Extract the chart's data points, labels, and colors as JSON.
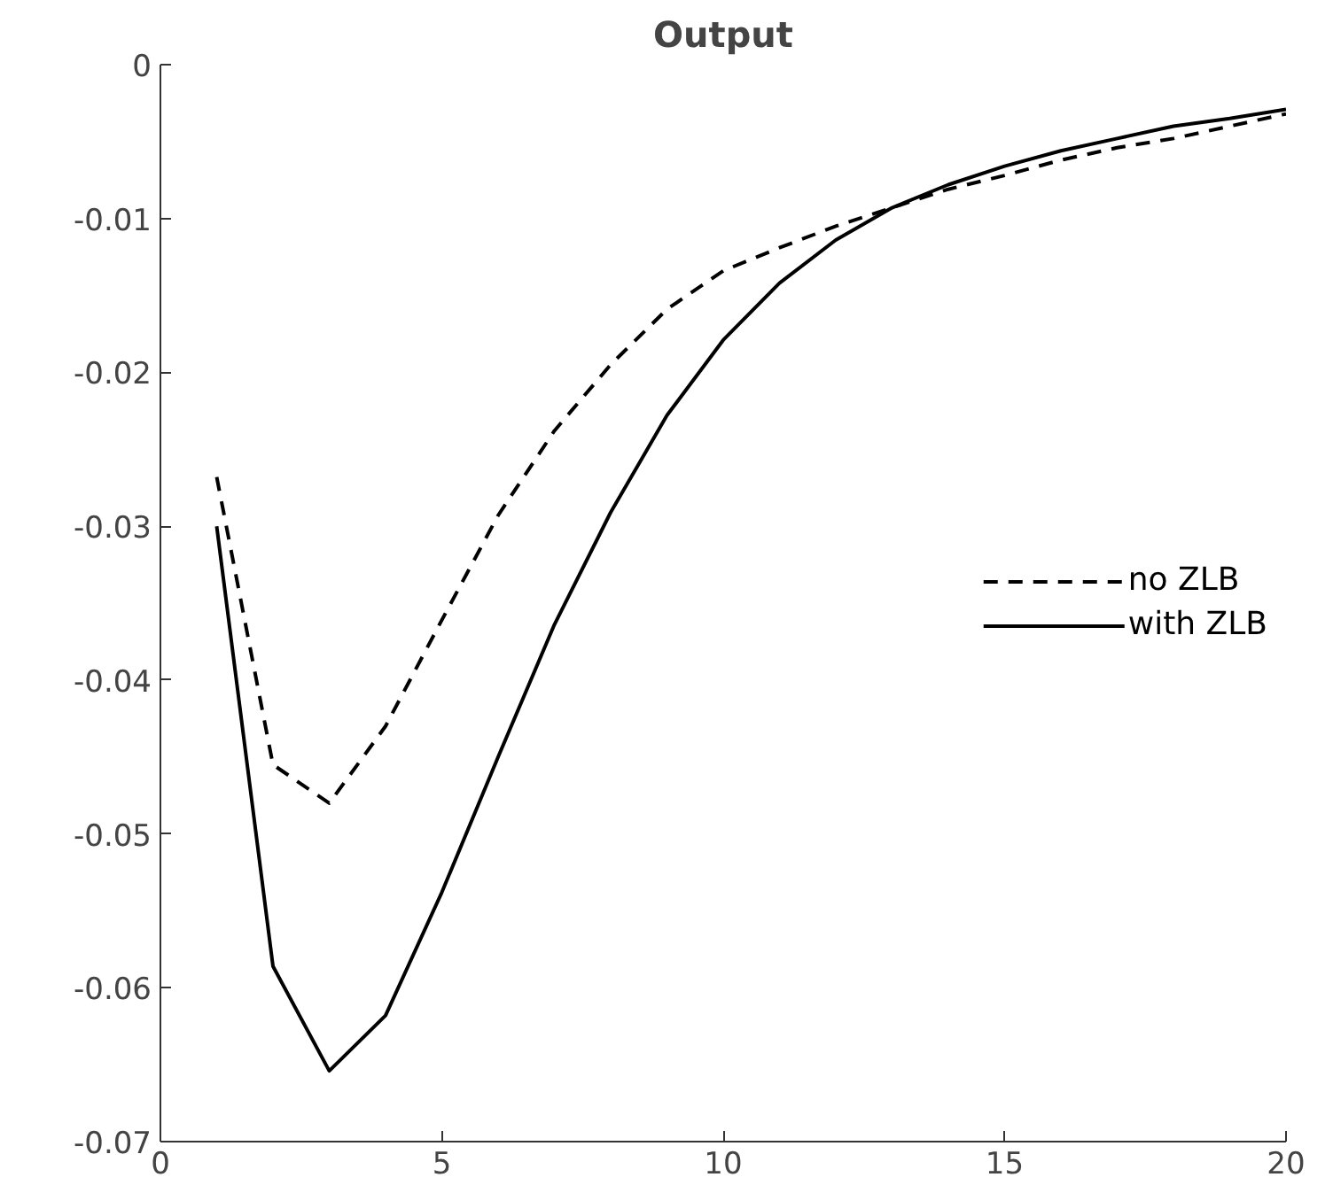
{
  "chart_data": {
    "type": "line",
    "title": "Output",
    "x": [
      1,
      2,
      3,
      4,
      5,
      6,
      7,
      8,
      9,
      10,
      11,
      12,
      13,
      14,
      15,
      16,
      17,
      18,
      19,
      20
    ],
    "series": [
      {
        "name": "no ZLB",
        "color": "#000000",
        "line_style": "dashed",
        "values": [
          -0.0268,
          -0.0455,
          -0.048,
          -0.043,
          -0.0361,
          -0.0293,
          -0.0238,
          -0.0195,
          -0.0159,
          -0.0134,
          -0.0119,
          -0.0105,
          -0.0093,
          -0.0081,
          -0.0072,
          -0.0062,
          -0.0054,
          -0.0048,
          -0.004,
          -0.0032
        ]
      },
      {
        "name": "with ZLB",
        "color": "#000000",
        "line_style": "solid",
        "values": [
          -0.03,
          -0.0586,
          -0.0654,
          -0.0618,
          -0.0538,
          -0.045,
          -0.0364,
          -0.0291,
          -0.0228,
          -0.0179,
          -0.0142,
          -0.0114,
          -0.0093,
          -0.0078,
          -0.0066,
          -0.0056,
          -0.0048,
          -0.004,
          -0.0035,
          -0.0029
        ]
      }
    ],
    "xlim": [
      0,
      20
    ],
    "xticks": [
      0,
      5,
      10,
      15,
      20
    ],
    "ylim": [
      -0.07,
      0
    ],
    "yticks": [
      {
        "value": 0,
        "label": "0"
      },
      -0.01,
      -0.02,
      -0.03,
      -0.04,
      -0.05,
      -0.06,
      -0.07
    ],
    "grid": false,
    "legend": "right"
  }
}
